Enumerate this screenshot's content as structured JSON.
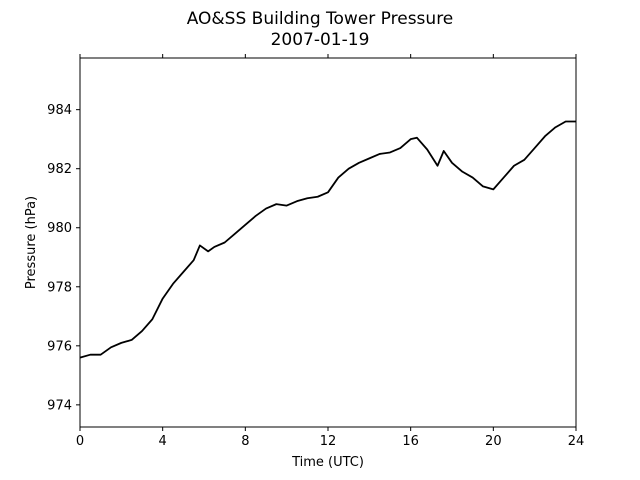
{
  "chart_data": {
    "type": "line",
    "title": "AO&SS Building Tower Pressure",
    "subtitle": "2007-01-19",
    "xlabel": "Time (UTC)",
    "ylabel": "Pressure (hPa)",
    "xlim": [
      0,
      24
    ],
    "ylim": [
      973.25,
      985.75
    ],
    "xticks": [
      0,
      4,
      8,
      12,
      16,
      20,
      24
    ],
    "yticks": [
      974,
      976,
      978,
      980,
      982,
      984
    ],
    "grid": false,
    "legend": "none",
    "line_color": "#000000",
    "series": [
      {
        "x": [
          0,
          0.5,
          1,
          1.5,
          2,
          2.5,
          3,
          3.5,
          4,
          4.5,
          5,
          5.5,
          5.8,
          6.2,
          6.5,
          7,
          7.5,
          8,
          8.5,
          9,
          9.5,
          10,
          10.5,
          11,
          11.5,
          12,
          12.5,
          13,
          13.5,
          14,
          14.5,
          15,
          15.5,
          16,
          16.3,
          16.8,
          17.3,
          17.6,
          18,
          18.5,
          19,
          19.5,
          20,
          20.5,
          21,
          21.5,
          22,
          22.5,
          23,
          23.5,
          24
        ],
        "y": [
          975.6,
          975.7,
          975.7,
          975.95,
          976.1,
          976.2,
          976.5,
          976.9,
          977.6,
          978.1,
          978.5,
          978.9,
          979.4,
          979.2,
          979.35,
          979.5,
          979.8,
          980.1,
          980.4,
          980.65,
          980.8,
          980.75,
          980.9,
          981.0,
          981.05,
          981.2,
          981.7,
          982.0,
          982.2,
          982.35,
          982.5,
          982.55,
          982.7,
          983.0,
          983.05,
          982.65,
          982.1,
          982.6,
          982.2,
          981.9,
          981.7,
          981.4,
          981.3,
          981.7,
          982.1,
          982.3,
          982.7,
          983.1,
          983.4,
          983.6,
          983.6
        ]
      }
    ]
  }
}
